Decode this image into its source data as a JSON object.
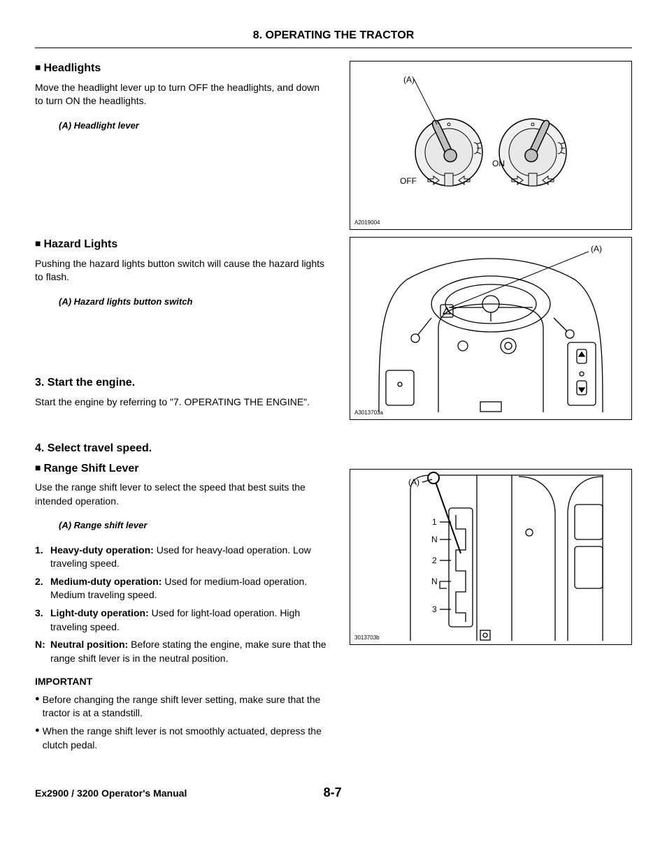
{
  "chapter": "8. OPERATING THE TRACTOR",
  "sec_headlights": {
    "title": "Headlights",
    "text": "Move the headlight lever up to turn OFF the headlights, and down to turn ON the headlights.",
    "caption": "(A) Headlight lever",
    "fig": {
      "code": "A2019004",
      "label_a": "(A)",
      "off": "OFF",
      "on": "ON"
    }
  },
  "sec_hazard": {
    "title": "Hazard Lights",
    "text": "Pushing the hazard lights button switch will cause the hazard lights to flash.",
    "caption": "(A) Hazard lights button switch",
    "fig": {
      "code": "A3013703a",
      "label_a": "(A)"
    }
  },
  "sec_start": {
    "title": "3.  Start the engine.",
    "text": "Start the engine by referring to \"7. OPERATING THE ENGINE\"."
  },
  "sec_speed": {
    "title": "4.  Select travel speed.",
    "sub": "Range Shift Lever",
    "text": "Use the range shift lever to select the speed that best suits the intended operation.",
    "caption": "(A) Range shift lever",
    "positions": [
      {
        "mk": "1.",
        "lb": "Heavy-duty operation:",
        "tx": " Used for heavy-load operation. Low traveling speed."
      },
      {
        "mk": "2.",
        "lb": "Medium-duty operation:",
        "tx": " Used for medium-load operation. Medium traveling speed."
      },
      {
        "mk": "3.",
        "lb": "Light-duty operation:",
        "tx": " Used for light-load operation. High traveling speed."
      },
      {
        "mk": "N:",
        "lb": "Neutral position:",
        "tx": " Before stating the engine, make sure that the range shift lever is in the neutral position."
      }
    ],
    "important": "IMPORTANT",
    "bullets": [
      "Before changing the range shift lever setting, make sure that the tractor is at a standstill.",
      "When the range shift lever is not smoothly actuated, depress the clutch pedal."
    ],
    "fig": {
      "code": "3013703b",
      "label_a": "(A)",
      "ticks": [
        "1",
        "N",
        "2",
        "N",
        "3"
      ]
    }
  },
  "footer": {
    "manual": "Ex2900 / 3200 Operator's Manual",
    "page": "8-7"
  }
}
